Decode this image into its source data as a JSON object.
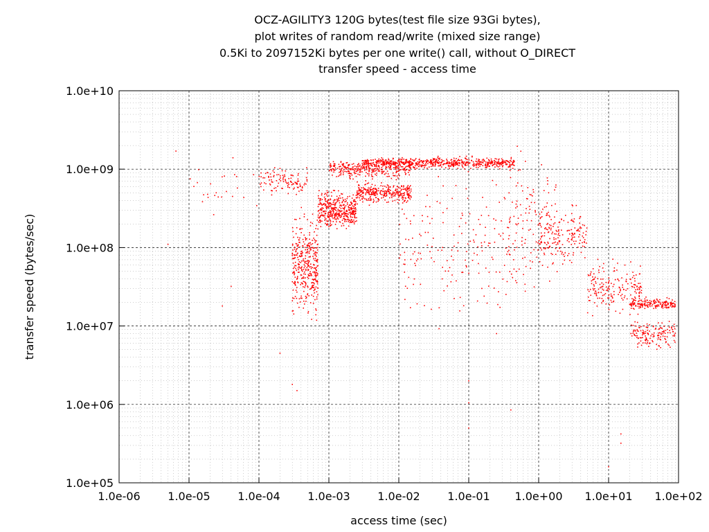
{
  "chart_data": {
    "type": "scatter",
    "title_lines": [
      "OCZ-AGILITY3 120G bytes(test file size 93Gi bytes),",
      "plot writes of random read/write (mixed size range)",
      "0.5Ki to 2097152Ki bytes per one write() call, without O_DIRECT",
      "transfer speed - access time"
    ],
    "xlabel": "access time (sec)",
    "ylabel": "transfer speed (bytes/sec)",
    "x_scale": "log",
    "y_scale": "log",
    "xlim": [
      1e-06,
      100
    ],
    "ylim": [
      100000.0,
      10000000000.0
    ],
    "x_ticks": [
      "1.0e-06",
      "1.0e-05",
      "1.0e-04",
      "1.0e-03",
      "1.0e-02",
      "1.0e-01",
      "1.0e+00",
      "1.0e+01",
      "1.0e+02"
    ],
    "y_ticks": [
      "1.0e+05",
      "1.0e+06",
      "1.0e+07",
      "1.0e+08",
      "1.0e+09",
      "1.0e+10"
    ],
    "grid": true,
    "point_color": "#ff0000",
    "clusters": [
      {
        "x_range": [
          0.0001,
          0.0005
        ],
        "y_center": 700000000.0,
        "y_spread": 0.15,
        "n": 110
      },
      {
        "x_range": [
          0.0003,
          0.0007
        ],
        "y_center": 60000000.0,
        "y_spread": 0.55,
        "n": 380
      },
      {
        "x_range": [
          0.0007,
          0.0025
        ],
        "y_center": 300000000.0,
        "y_spread": 0.2,
        "n": 420
      },
      {
        "x_range": [
          0.0025,
          0.015
        ],
        "y_center": 500000000.0,
        "y_spread": 0.12,
        "n": 320
      },
      {
        "x_range": [
          0.001,
          0.015
        ],
        "y_center": 1000000000.0,
        "y_spread": 0.1,
        "n": 300
      },
      {
        "x_range": [
          0.003,
          0.45
        ],
        "y_center": 1200000000.0,
        "y_spread": 0.06,
        "n": 650
      },
      {
        "x_range": [
          1.0,
          5.0
        ],
        "y_center": 150000000.0,
        "y_spread": 0.35,
        "n": 170
      },
      {
        "x_range": [
          5.0,
          30.0
        ],
        "y_center": 30000000.0,
        "y_spread": 0.3,
        "n": 200
      },
      {
        "x_range": [
          20.0,
          90.0
        ],
        "y_center": 19000000.0,
        "y_spread": 0.06,
        "n": 170
      },
      {
        "x_range": [
          20.0,
          90.0
        ],
        "y_center": 8000000.0,
        "y_spread": 0.15,
        "n": 150
      },
      {
        "x_range": [
          0.01,
          0.5
        ],
        "y_center": 100000000.0,
        "y_spread": 0.9,
        "n": 180
      },
      {
        "x_range": [
          0.3,
          2.0
        ],
        "y_center": 200000000.0,
        "y_spread": 0.8,
        "n": 140
      },
      {
        "x_range": [
          1e-05,
          0.0001
        ],
        "y_center": 600000000.0,
        "y_spread": 0.35,
        "n": 25
      }
    ],
    "outliers": [
      {
        "x": 6.5e-06,
        "y": 1700000000.0
      },
      {
        "x": 5e-06,
        "y": 110000000.0
      },
      {
        "x": 3e-05,
        "y": 18000000.0
      },
      {
        "x": 4e-05,
        "y": 32000000.0
      },
      {
        "x": 0.0003,
        "y": 1800000.0
      },
      {
        "x": 0.00035,
        "y": 1500000.0
      },
      {
        "x": 0.0002,
        "y": 4500000.0
      },
      {
        "x": 0.1,
        "y": 1050000.0
      },
      {
        "x": 0.1,
        "y": 500000.0
      },
      {
        "x": 0.4,
        "y": 850000.0
      },
      {
        "x": 15.0,
        "y": 420000.0
      },
      {
        "x": 15.0,
        "y": 320000.0
      },
      {
        "x": 10.0,
        "y": 160000.0
      },
      {
        "x": 0.25,
        "y": 8000000.0
      },
      {
        "x": 0.1,
        "y": 2000000.0
      }
    ]
  }
}
